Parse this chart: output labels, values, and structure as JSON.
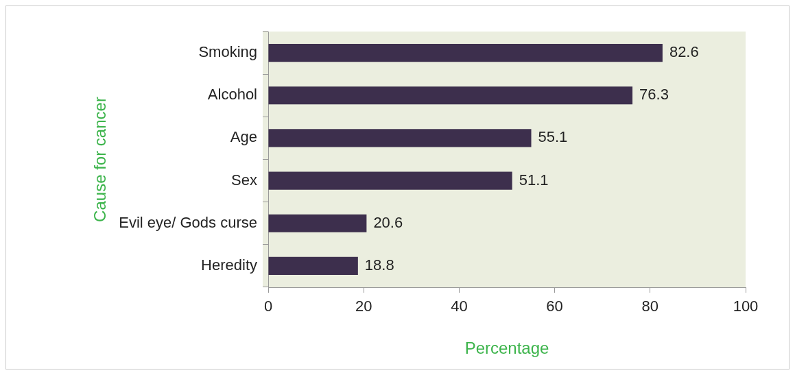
{
  "chart_data": {
    "type": "bar",
    "orientation": "horizontal",
    "xlabel": "Percentage",
    "ylabel": "Cause for cancer",
    "categories": [
      "Smoking",
      "Alcohol",
      "Age",
      "Sex",
      "Evil eye/ Gods curse",
      "Heredity"
    ],
    "values": [
      82.6,
      76.3,
      55.1,
      51.1,
      20.6,
      18.8
    ],
    "color": "#3d2f4d",
    "xlim": [
      0,
      100
    ],
    "xticks": [
      0,
      20,
      40,
      60,
      80,
      100
    ],
    "grid": false,
    "legend": false,
    "data_labels": true
  }
}
